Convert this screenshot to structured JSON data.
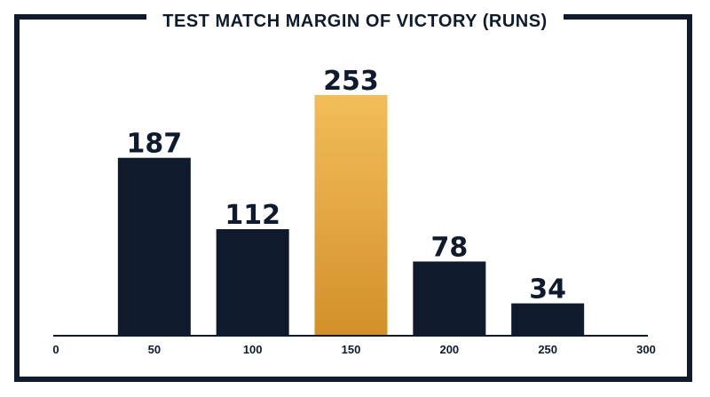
{
  "chart_data": {
    "type": "bar",
    "title": "TEST MATCH MARGIN OF VICTORY (RUNS)",
    "x": [
      50,
      100,
      150,
      200,
      250
    ],
    "values": [
      187,
      112,
      253,
      78,
      34
    ],
    "xticks": [
      "0",
      "50",
      "100",
      "150",
      "200",
      "250",
      "300"
    ],
    "xlim": [
      0,
      300
    ],
    "ylim": [
      0,
      253
    ],
    "highlight_index": 2,
    "grid": false,
    "colors": {
      "bar": "#0f1b2c",
      "highlight_top": "#f2bd5a",
      "highlight_bottom": "#d3902a",
      "frame": "#0f1b2c"
    }
  }
}
